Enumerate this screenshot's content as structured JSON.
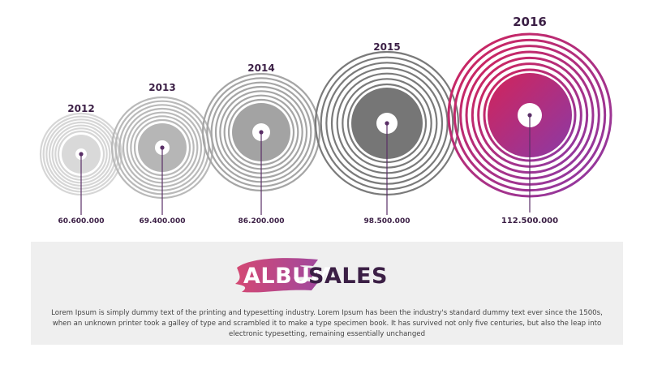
{
  "records": [
    {
      "year": "2012",
      "value": "60.600.000",
      "style": "gray-lightest"
    },
    {
      "year": "2013",
      "value": "69.400.000",
      "style": "gray-light"
    },
    {
      "year": "2014",
      "value": "86.200.000",
      "style": "gray-mid"
    },
    {
      "year": "2015",
      "value": "98.500.000",
      "style": "gray-dark"
    },
    {
      "year": "2016",
      "value": "112.500.000",
      "style": "gradient-highlight"
    }
  ],
  "colors": {
    "text_dark": "#3b1f45",
    "stem": "#5a2f67",
    "ring_2012": "#d6d6d6",
    "ring_2013": "#b9b9b9",
    "ring_2014": "#a5a5a5",
    "ring_2015": "#7a7a7a",
    "ring_2016_start": "#c9265a",
    "ring_2016_end": "#8a3aa3",
    "panel_bg": "#efefef"
  },
  "title": {
    "word1": "ALBUM",
    "word2": "SALES"
  },
  "description": "Lorem Ipsum is simply dummy text of the printing and typesetting industry. Lorem Ipsum has been the industry's standard dummy text ever since the 1500s, when an unknown printer took a galley of type and scrambled it to make a type specimen book. It has survived not only five centuries, but also the leap into electronic typesetting, remaining essentially unchanged"
}
